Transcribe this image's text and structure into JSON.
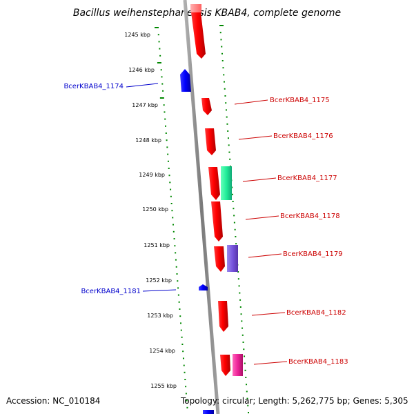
{
  "title": "Bacillus weihenstephanensis KBAB4, complete genome",
  "footer": {
    "accession": "Accession: NC_010184",
    "topology": "Topology: circular; Length: 5,262,775 bp; Genes: 5,305"
  },
  "scale": {
    "labels": [
      "1245 kbp",
      "1246 kbp",
      "1247 kbp",
      "1248 kbp",
      "1249 kbp",
      "1250 kbp",
      "1251 kbp",
      "1252 kbp",
      "1253 kbp",
      "1254 kbp",
      "1255 kbp"
    ]
  },
  "genes": [
    {
      "name": "BcerKBAB4_1174",
      "strand": "-",
      "color": "#0000cc"
    },
    {
      "name": "BcerKBAB4_1175",
      "strand": "+",
      "color": "#cc0000"
    },
    {
      "name": "BcerKBAB4_1176",
      "strand": "+",
      "color": "#cc0000"
    },
    {
      "name": "BcerKBAB4_1177",
      "strand": "+",
      "color": "#cc0000"
    },
    {
      "name": "BcerKBAB4_1178",
      "strand": "+",
      "color": "#cc0000"
    },
    {
      "name": "BcerKBAB4_1179",
      "strand": "+",
      "color": "#cc0000"
    },
    {
      "name": "BcerKBAB4_1181",
      "strand": "-",
      "color": "#0000cc"
    },
    {
      "name": "BcerKBAB4_1182",
      "strand": "+",
      "color": "#cc0000"
    },
    {
      "name": "BcerKBAB4_1183",
      "strand": "+",
      "color": "#cc0000"
    }
  ],
  "colors": {
    "plus_strand": "#ff0000",
    "minus_strand": "#0000ff",
    "backbone": "#888888",
    "ticks": "#008800",
    "feature_green": "#22ee99",
    "feature_purple": "#7755dd",
    "feature_magenta": "#ee2299"
  }
}
